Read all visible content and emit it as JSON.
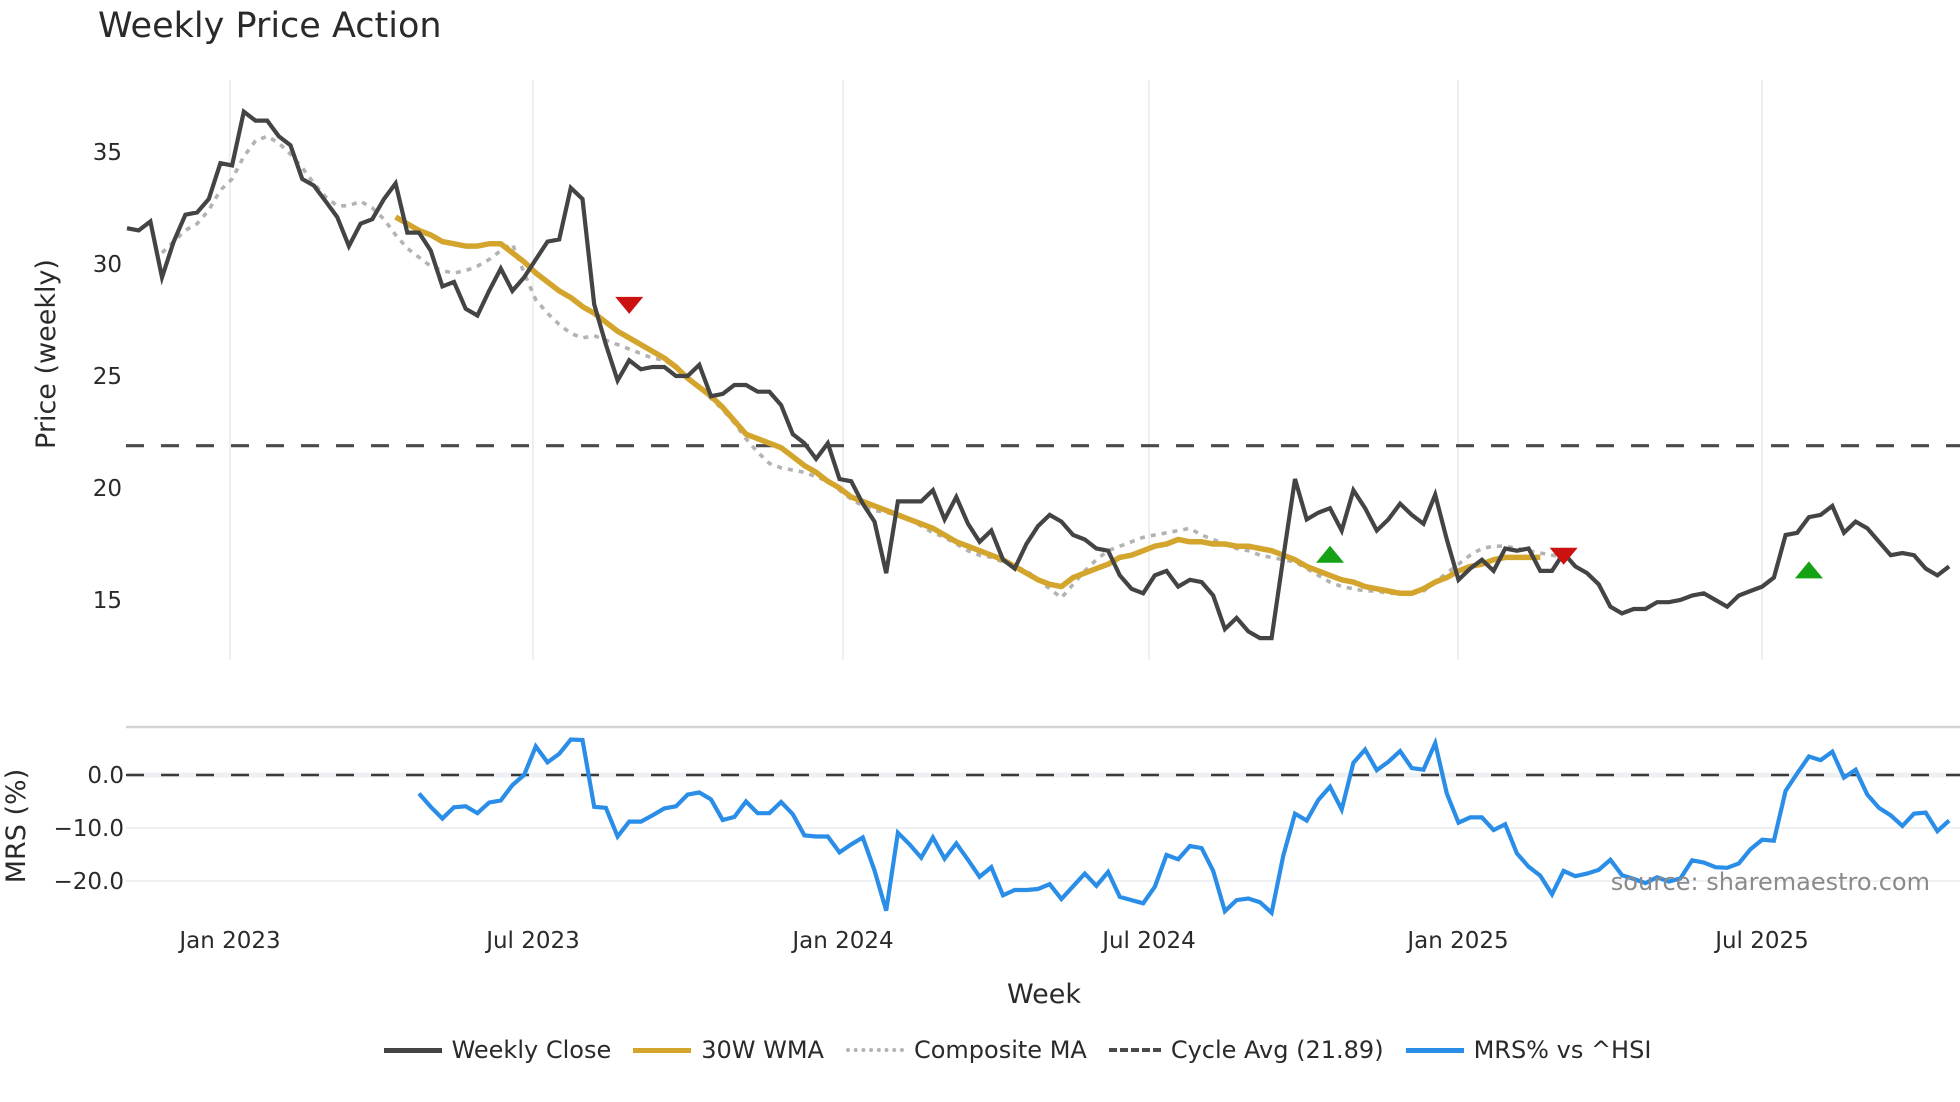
{
  "title": "Weekly Price Action",
  "watermark": "source: sharemaestro.com",
  "colors": {
    "weekly_close": "#444444",
    "wma30": "#d4a52c",
    "composite_ma": "#b3b3b3",
    "cycle_avg": "#4a4a4a",
    "mrs": "#2a8ee8",
    "buy_marker": "#14a214",
    "sell_marker": "#cc1111",
    "grid": "#e8ecf0"
  },
  "legend": [
    {
      "label": "Weekly Close",
      "style": "solid",
      "color": "#444444"
    },
    {
      "label": "30W WMA",
      "style": "solid",
      "color": "#d4a52c"
    },
    {
      "label": "Composite MA",
      "style": "dotted",
      "color": "#b3b3b3"
    },
    {
      "label": "Cycle Avg (21.89)",
      "style": "dashed",
      "color": "#4a4a4a"
    },
    {
      "label": "MRS% vs ^HSI",
      "style": "solid",
      "color": "#2a8ee8"
    }
  ],
  "chart_data": [
    {
      "type": "line",
      "title": "Weekly Price Action",
      "xlabel": "Week",
      "ylabel": "Price (weekly)",
      "x_tick_labels": [
        "Jan 2023",
        "Jul 2023",
        "Jan 2024",
        "Jul 2024",
        "Jan 2025",
        "Jul 2025"
      ],
      "y_ticks": [
        15,
        20,
        25,
        30,
        35
      ],
      "ylim": [
        11.9,
        38.2
      ],
      "grid": true,
      "legend_position": "bottom",
      "cycle_avg": 21.89,
      "x_start_week": "2022-11-14",
      "series": [
        {
          "name": "Weekly Close",
          "values": [
            31.6,
            31.5,
            31.9,
            29.4,
            31.0,
            32.2,
            32.3,
            32.9,
            34.5,
            34.4,
            36.8,
            36.4,
            36.4,
            35.7,
            35.3,
            33.8,
            33.5,
            32.8,
            32.1,
            30.8,
            31.8,
            32.0,
            32.9,
            33.6,
            31.4,
            31.4,
            30.6,
            29.0,
            29.2,
            28.0,
            27.7,
            28.8,
            29.8,
            28.8,
            29.4,
            30.2,
            31.0,
            31.1,
            33.4,
            32.9,
            28.2,
            26.4,
            24.8,
            25.7,
            25.3,
            25.4,
            25.4,
            25.0,
            25.0,
            25.5,
            24.1,
            24.2,
            24.6,
            24.6,
            24.3,
            24.3,
            23.7,
            22.4,
            22.0,
            21.3,
            22.0,
            20.4,
            20.3,
            19.3,
            18.5,
            16.2,
            19.4,
            19.4,
            19.4,
            19.9,
            18.6,
            19.6,
            18.4,
            17.6,
            18.1,
            16.8,
            16.4,
            17.5,
            18.3,
            18.8,
            18.5,
            17.9,
            17.7,
            17.3,
            17.2,
            16.1,
            15.5,
            15.3,
            16.1,
            16.3,
            15.6,
            15.9,
            15.8,
            15.2,
            13.7,
            14.2,
            13.6,
            13.3,
            13.3,
            16.9,
            20.4,
            18.6,
            18.9,
            19.1,
            18.1,
            19.9,
            19.1,
            18.1,
            18.6,
            19.3,
            18.8,
            18.4,
            19.7,
            17.7,
            15.9,
            16.4,
            16.8,
            16.3,
            17.3,
            17.2,
            17.3,
            16.3,
            16.3,
            17.1,
            16.5,
            16.2,
            15.7,
            14.7,
            14.4,
            14.6,
            14.6,
            14.9,
            14.9,
            15.0,
            15.2,
            15.3,
            15.0,
            14.7,
            15.2,
            15.4,
            15.6,
            16.0,
            17.9,
            18.0,
            18.7,
            18.8,
            19.2,
            18.0,
            18.5,
            18.2,
            17.6,
            17.0,
            17.1,
            17.0,
            16.4,
            16.1,
            16.5
          ]
        },
        {
          "name": "30W WMA",
          "start_index": 23,
          "values": [
            32.1,
            31.8,
            31.5,
            31.3,
            31.0,
            30.9,
            30.8,
            30.8,
            30.9,
            30.9,
            30.5,
            30.1,
            29.6,
            29.2,
            28.8,
            28.5,
            28.1,
            27.8,
            27.4,
            27.0,
            26.7,
            26.4,
            26.1,
            25.8,
            25.4,
            24.9,
            24.5,
            24.1,
            23.6,
            23.0,
            22.4,
            22.2,
            22.0,
            21.8,
            21.4,
            21.0,
            20.7,
            20.3,
            20.0,
            19.6,
            19.4,
            19.2,
            19.0,
            18.8,
            18.6,
            18.4,
            18.2,
            17.9,
            17.6,
            17.4,
            17.2,
            17.0,
            16.8,
            16.5,
            16.2,
            15.9,
            15.7,
            15.6,
            16.0,
            16.2,
            16.4,
            16.6,
            16.9,
            17.0,
            17.2,
            17.4,
            17.5,
            17.7,
            17.6,
            17.6,
            17.5,
            17.5,
            17.4,
            17.4,
            17.3,
            17.2,
            17.0,
            16.8,
            16.5,
            16.3,
            16.1,
            15.9,
            15.8,
            15.6,
            15.5,
            15.4,
            15.3,
            15.3,
            15.5,
            15.8,
            16.0,
            16.3,
            16.5,
            16.6,
            16.8,
            16.9,
            16.9,
            16.9,
            16.9
          ]
        },
        {
          "name": "Composite MA",
          "start_index": 3,
          "values": [
            30.5,
            31.0,
            31.5,
            31.8,
            32.4,
            33.3,
            33.8,
            34.8,
            35.5,
            35.7,
            35.4,
            34.9,
            34.3,
            33.6,
            33.0,
            32.6,
            32.6,
            32.8,
            32.5,
            32.0,
            31.3,
            30.7,
            30.3,
            29.9,
            29.7,
            29.6,
            29.7,
            29.9,
            30.2,
            30.6,
            30.9,
            29.6,
            28.4,
            27.8,
            27.3,
            26.9,
            26.7,
            26.8,
            26.6,
            26.4,
            26.2,
            26.0,
            25.8,
            25.7,
            25.4,
            25.0,
            24.5,
            24.0,
            23.5,
            22.9,
            22.2,
            21.6,
            21.1,
            20.9,
            20.8,
            20.7,
            20.5,
            20.3,
            19.9,
            19.5,
            19.2,
            19.0,
            18.9,
            18.8,
            18.6,
            18.3,
            18.0,
            17.8,
            17.5,
            17.2,
            17.0,
            16.9,
            16.7,
            16.5,
            16.3,
            15.9,
            15.5,
            15.1,
            15.7,
            16.3,
            16.8,
            17.2,
            17.4,
            17.6,
            17.8,
            17.9,
            18.0,
            18.1,
            18.2,
            17.9,
            17.7,
            17.5,
            17.3,
            17.2,
            17.0,
            16.9,
            16.8,
            16.7,
            16.4,
            16.1,
            15.8,
            15.6,
            15.5,
            15.4,
            15.4,
            15.3,
            15.3,
            15.3,
            15.4,
            15.8,
            16.2,
            16.6,
            17.0,
            17.3,
            17.4,
            17.4,
            17.3,
            17.2,
            17.1,
            17.0,
            16.9
          ]
        }
      ],
      "markers": [
        {
          "type": "sell",
          "shape": "triangle-down",
          "index": 43,
          "value": 28.2
        },
        {
          "type": "buy",
          "shape": "triangle-up",
          "index": 103,
          "value": 17.0
        },
        {
          "type": "sell",
          "shape": "triangle-down",
          "index": 123,
          "value": 17.0
        },
        {
          "type": "buy",
          "shape": "triangle-up",
          "index": 144,
          "value": 16.3
        }
      ]
    },
    {
      "type": "line",
      "title": "",
      "xlabel": "Week",
      "ylabel": "MRS (%)",
      "y_ticks": [
        0.0,
        -10.0,
        -20.0
      ],
      "y_tick_labels": [
        "0.0",
        "−10.0",
        "−20.0"
      ],
      "ylim": [
        -27,
        9
      ],
      "zero_line": 0.0,
      "series": [
        {
          "name": "MRS% vs ^HSI",
          "start_index": 25,
          "values": [
            -3.5,
            -6.0,
            -8.2,
            -6.1,
            -5.9,
            -7.2,
            -5.2,
            -4.8,
            -1.9,
            0.0,
            5.4,
            2.4,
            4.0,
            6.7,
            6.6,
            -6.0,
            -6.2,
            -11.6,
            -8.8,
            -8.8,
            -7.6,
            -6.3,
            -5.9,
            -3.7,
            -3.3,
            -4.6,
            -8.5,
            -7.9,
            -5.0,
            -7.2,
            -7.2,
            -5.1,
            -7.4,
            -11.4,
            -11.6,
            -11.6,
            -14.6,
            -13.1,
            -11.8,
            -18.0,
            -25.6,
            -10.9,
            -13.1,
            -15.6,
            -11.8,
            -15.8,
            -12.9,
            -16.0,
            -19.2,
            -17.4,
            -22.7,
            -21.7,
            -21.7,
            -21.5,
            -20.6,
            -23.4,
            -21.0,
            -18.6,
            -20.9,
            -18.3,
            -23.0,
            -23.6,
            -24.2,
            -21.1,
            -15.1,
            -15.9,
            -13.4,
            -13.8,
            -18.1,
            -25.7,
            -23.6,
            -23.3,
            -24.0,
            -26.0,
            -15.2,
            -7.3,
            -8.6,
            -4.7,
            -2.2,
            -6.5,
            2.3,
            4.8,
            0.9,
            2.5,
            4.5,
            1.3,
            1.0,
            6.0,
            -3.5,
            -9.0,
            -8.0,
            -8.0,
            -10.4,
            -9.3,
            -14.8,
            -17.3,
            -19.0,
            -22.5,
            -18.1,
            -19.1,
            -18.6,
            -17.9,
            -16.0,
            -18.9,
            -19.6,
            -20.4,
            -19.3,
            -20.1,
            -19.5,
            -16.1,
            -16.5,
            -17.4,
            -17.5,
            -16.7,
            -14.0,
            -12.2,
            -12.4,
            -3.0,
            0.3,
            3.5,
            2.8,
            4.4,
            -0.5,
            1.0,
            -3.7,
            -6.2,
            -7.6,
            -9.6,
            -7.3,
            -7.1,
            -10.6,
            -8.6
          ]
        }
      ]
    }
  ]
}
